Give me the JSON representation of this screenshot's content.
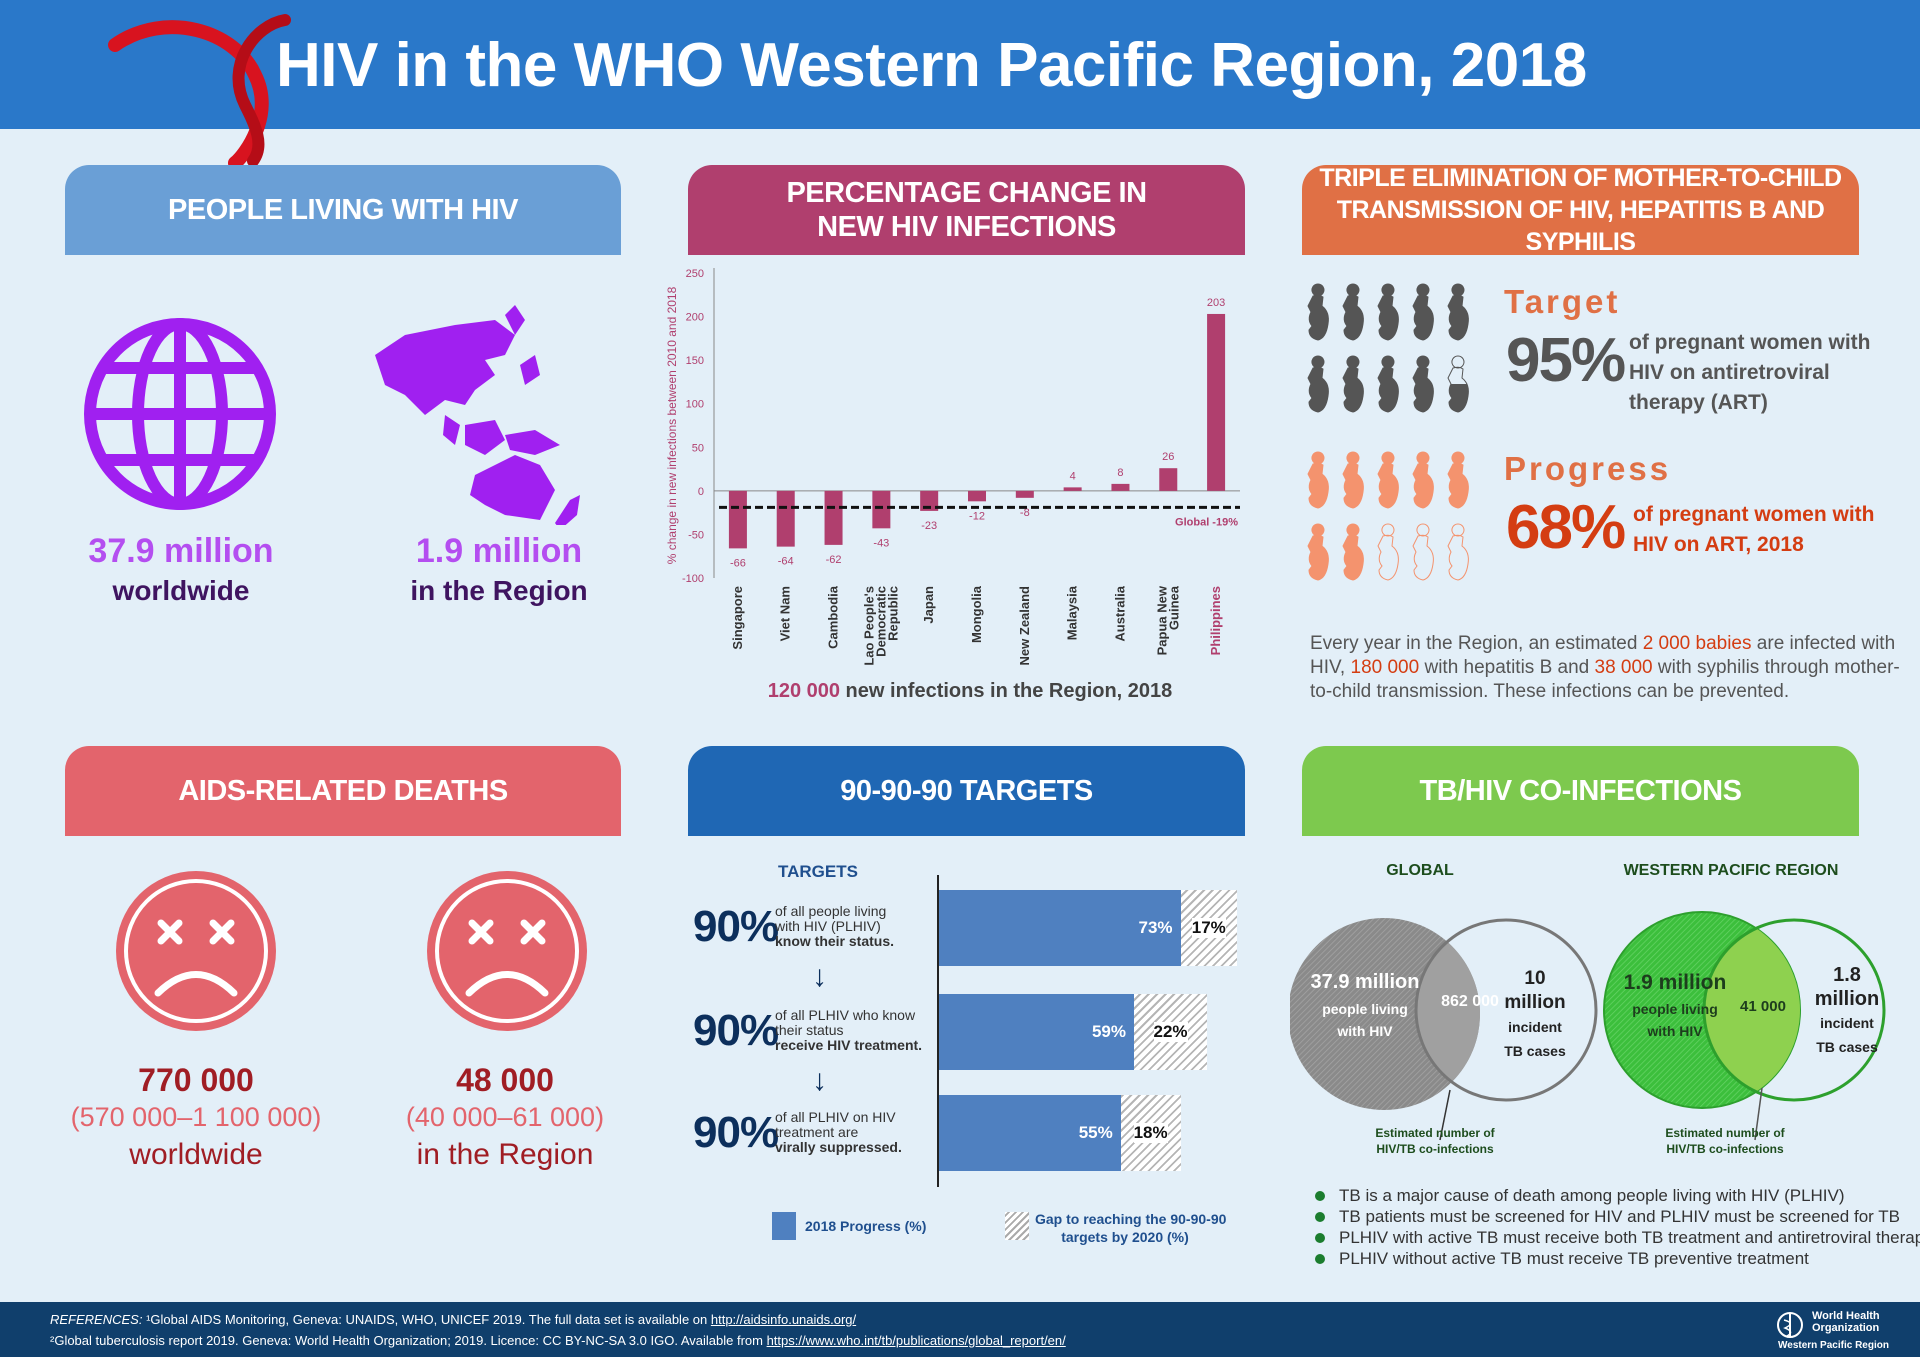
{
  "title": "HIV in the WHO Western Pacific Region, 2018",
  "colors": {
    "header": "#2a78c9",
    "plhiv": "#6a9fd6",
    "change": "#b03f6e",
    "triple": "#e07045",
    "deaths": "#e3646c",
    "targets": "#1f67b4",
    "tb": "#7dc94e",
    "bar": "#b03f6e",
    "purple": "#a020f0",
    "progress_bar": "#4f80c0"
  },
  "plhiv": {
    "heading": "PEOPLE LIVING WITH HIV",
    "worldwide_value": "37.9 million",
    "worldwide_label": "worldwide",
    "region_value": "1.9 million",
    "region_label": "in the Region",
    "icons": [
      "globe-icon",
      "region-map-icon"
    ]
  },
  "change": {
    "heading_line1": "PERCENTAGE CHANGE IN",
    "heading_line2": "NEW HIV INFECTIONS",
    "footer_value": "120 000",
    "footer_text": " new infections in the Region, 2018"
  },
  "chart_data": {
    "type": "bar",
    "ylabel": "% change in new infections between 2010 and 2018",
    "categories": [
      "Singapore",
      "Viet Nam",
      "Cambodia",
      "Lao People's Democratic Republic",
      "Japan",
      "Mongolia",
      "New Zealand",
      "Malaysia",
      "Australia",
      "Papua New Guinea",
      "Philippines"
    ],
    "values": [
      -66,
      -64,
      -62,
      -43,
      -23,
      -12,
      -8,
      4,
      8,
      26,
      203
    ],
    "ylim": [
      -100,
      250
    ],
    "yticks": [
      250,
      200,
      150,
      100,
      50,
      0,
      -50,
      -100
    ],
    "reference_line": {
      "label": "Global -19%",
      "value": -19
    },
    "highlight": "Philippines",
    "grid": false
  },
  "triple": {
    "heading_line1": "TRIPLE ELIMINATION OF MOTHER-TO-CHILD",
    "heading_line2": "TRANSMISSION OF HIV, HEPATITIS B AND SYPHILIS",
    "target_label": "Target",
    "target_value": "95%",
    "target_percent": 95,
    "target_text": [
      "of pregnant women with",
      "HIV on antiretroviral",
      "therapy (ART)"
    ],
    "progress_label": "Progress",
    "progress_value": "68%",
    "progress_percent": 68,
    "progress_text": [
      "of pregnant women with",
      "HIV on ART, 2018"
    ],
    "para": {
      "p1": "Every year in the Region, an estimated ",
      "h1": "2 000 babies",
      "p2": " are infected with HIV, ",
      "h2": "180 000",
      "p3": " with hepatitis B and ",
      "h3": "38 000",
      "p4": " with syphilis through mother-to-child transmission. These infections can be prevented."
    }
  },
  "deaths": {
    "heading": "AIDS-RELATED DEATHS",
    "worldwide_value": "770 000",
    "worldwide_range": "(570 000–1 100 000)",
    "worldwide_label": "worldwide",
    "region_value": "48 000",
    "region_range": "(40 000–61 000)",
    "region_label": "in the Region"
  },
  "targets": {
    "heading": "90-90-90 TARGETS",
    "subheading": "TARGETS",
    "rows": [
      {
        "target": "90%",
        "line1": "of all people living",
        "line2": "with HIV (PLHIV)",
        "line3": "know their status.",
        "progress": 73,
        "progress_label": "73%",
        "gap": 17,
        "gap_label": "17%"
      },
      {
        "target": "90%",
        "line1": "of all PLHIV who know",
        "line2": "their status",
        "line3": "receive HIV treatment.",
        "progress": 59,
        "progress_label": "59%",
        "gap": 22,
        "gap_label": "22%"
      },
      {
        "target": "90%",
        "line1": "of all PLHIV on HIV",
        "line2": "treatment are",
        "line3": "virally suppressed.",
        "progress": 55,
        "progress_label": "55%",
        "gap": 18,
        "gap_label": "18%"
      }
    ],
    "arrow": "↓",
    "legend_progress": "2018 Progress (%)",
    "legend_gap_line1": "Gap to reaching the 90-90-90",
    "legend_gap_line2": "targets by 2020 (%)"
  },
  "tb": {
    "heading": "TB/HIV CO-INFECTIONS",
    "global": {
      "title": "GLOBAL",
      "plhiv": "37.9 million",
      "plhiv_l1": "people living",
      "plhiv_l2": "with HIV",
      "overlap": "862 000",
      "tb_l1": "10",
      "tb_l2": "million",
      "tb_l3": "incident",
      "tb_l4": "TB cases",
      "note1": "Estimated number of",
      "note2": "HIV/TB co-infections"
    },
    "region": {
      "title": "WESTERN PACIFIC REGION",
      "plhiv": "1.9 million",
      "plhiv_l1": "people living",
      "plhiv_l2": "with HIV",
      "overlap": "41 000",
      "tb_l1": "1.8",
      "tb_l2": "million",
      "tb_l3": "incident",
      "tb_l4": "TB cases",
      "note1": "Estimated number of",
      "note2": "HIV/TB co-infections"
    },
    "bullets": [
      "TB is a major cause of death among people living with HIV (PLHIV)",
      "TB patients must be screened for HIV and PLHIV must be screened for TB",
      "PLHIV with active TB must receive both TB treatment and antiretroviral theraphy (ART)",
      "PLHIV without active TB must receive TB preventive treatment"
    ]
  },
  "footer": {
    "ref_label": "REFERENCES:",
    "ref1": " ¹Global AIDS Monitoring, Geneva: UNAIDS, WHO, UNICEF 2019.  The full data set is available on ",
    "ref1_link": "http://aidsinfo.unaids.org/",
    "ref2": "²Global tuberculosis report 2019. Geneva: World Health Organization; 2019. Licence: CC BY-NC-SA 3.0 IGO.  Available from ",
    "ref2_link": "https://www.who.int/tb/publications/global_report/en/",
    "logo_l1": "World Health",
    "logo_l2": "Organization",
    "logo_l3": "Western Pacific Region"
  }
}
